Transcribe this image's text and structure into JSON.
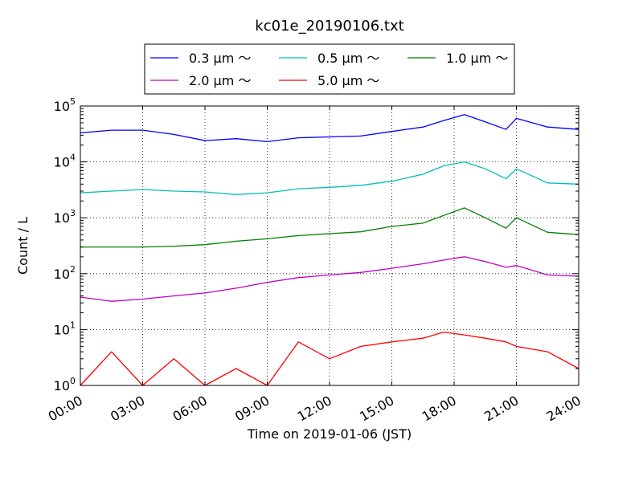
{
  "chart_data": {
    "type": "line",
    "title": "kc01e_20190106.txt",
    "xlabel": "Time on 2019-01-06 (JST)",
    "ylabel": "Count / L",
    "yscale": "log",
    "ylim_exponents": [
      0,
      5
    ],
    "y_tick_labels": [
      {
        "base": "10",
        "exp": "0"
      },
      {
        "base": "10",
        "exp": "1"
      },
      {
        "base": "10",
        "exp": "2"
      },
      {
        "base": "10",
        "exp": "3"
      },
      {
        "base": "10",
        "exp": "4"
      },
      {
        "base": "10",
        "exp": "5"
      }
    ],
    "xlim_hours": [
      0,
      24
    ],
    "x_ticks": [
      {
        "hour": 0,
        "label": "00:00"
      },
      {
        "hour": 3,
        "label": "03:00"
      },
      {
        "hour": 6,
        "label": "06:00"
      },
      {
        "hour": 9,
        "label": "09:00"
      },
      {
        "hour": 12,
        "label": "12:00"
      },
      {
        "hour": 15,
        "label": "15:00"
      },
      {
        "hour": 18,
        "label": "18:00"
      },
      {
        "hour": 21,
        "label": "21:00"
      },
      {
        "hour": 24,
        "label": "24:00"
      }
    ],
    "grid": true,
    "grid_style": "dotted",
    "legend_position": "top-center, outside plot",
    "x_hours": [
      0,
      1.5,
      3,
      4.5,
      6,
      7.5,
      9,
      10.5,
      12,
      13.5,
      15,
      16.5,
      17.5,
      18.5,
      19.5,
      20.5,
      21,
      22.5,
      24
    ],
    "series": [
      {
        "name": "0.3 μm ～",
        "color": "#0000ff",
        "values": [
          33000,
          37000,
          37000,
          31000,
          24000,
          26000,
          23000,
          27000,
          28000,
          29000,
          35000,
          42000,
          55000,
          70000,
          52000,
          38000,
          60000,
          42000,
          38000
        ]
      },
      {
        "name": "0.5 μm ～",
        "color": "#00bfbf",
        "values": [
          2800,
          3000,
          3200,
          3000,
          2900,
          2600,
          2800,
          3300,
          3500,
          3800,
          4500,
          6000,
          8500,
          10000,
          7500,
          5000,
          7500,
          4200,
          4000
        ]
      },
      {
        "name": "1.0 μm ～",
        "color": "#008000",
        "values": [
          300,
          300,
          300,
          310,
          330,
          380,
          420,
          480,
          520,
          560,
          700,
          800,
          1100,
          1500,
          1000,
          650,
          1000,
          550,
          500
        ]
      },
      {
        "name": "2.0 μm ～",
        "color": "#bf00bf",
        "values": [
          38,
          32,
          35,
          40,
          45,
          55,
          70,
          85,
          95,
          105,
          125,
          150,
          175,
          200,
          165,
          130,
          140,
          95,
          90
        ]
      },
      {
        "name": "5.0 μm ～",
        "color": "#ff0000",
        "values": [
          1,
          4,
          1,
          3,
          1,
          2,
          1,
          6,
          3,
          5,
          6,
          7,
          9,
          8,
          7,
          6,
          5,
          4,
          2
        ]
      }
    ]
  }
}
